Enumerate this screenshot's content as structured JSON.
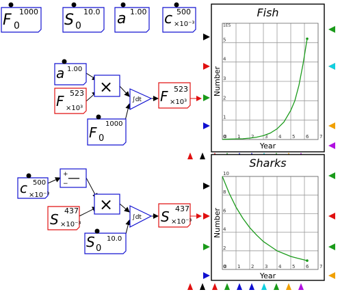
{
  "blocks": {
    "f0_top": {
      "symbol": "F",
      "sub": "0",
      "sup": "1000"
    },
    "s0_top": {
      "symbol": "S",
      "sub": "0",
      "sup": "10.0"
    },
    "a_top": {
      "symbol": "a",
      "sup": "1.00"
    },
    "c_top": {
      "symbol": "c",
      "sup": "500",
      "unit": "×10⁻³"
    },
    "a_in": {
      "symbol": "a",
      "sup": "1.00"
    },
    "f_in": {
      "symbol": "F",
      "sup": "523",
      "unit": "×10³"
    },
    "f0_in": {
      "symbol": "F",
      "sub": "0",
      "sup": "1000"
    },
    "f_out": {
      "symbol": "F",
      "sup": "523",
      "unit": "×10³"
    },
    "c_in": {
      "symbol": "c",
      "sup": "500",
      "unit": "×10⁻³"
    },
    "s_in": {
      "symbol": "S",
      "sup": "437",
      "unit": "×10⁻³"
    },
    "s0_in": {
      "symbol": "S",
      "sub": "0",
      "sup": "10.0"
    },
    "s_out": {
      "symbol": "S",
      "sup": "437",
      "unit": "×10⁻³"
    }
  },
  "operators": {
    "multiply": "×",
    "integrate": "∫dt",
    "minus": "—",
    "plus_sign": "+",
    "minus_sign": "−"
  },
  "colors": {
    "blue": "#1010d0",
    "red": "#e01010",
    "green": "#1a9a1a",
    "cyan": "#10d0e0",
    "orange": "#f0a000",
    "purple": "#b010e0",
    "black": "#000000"
  },
  "chart_data": [
    {
      "type": "line",
      "title": "Fish",
      "xlabel": "Year",
      "ylabel": "Number",
      "ymult": "1E5",
      "xlim": [
        0,
        7
      ],
      "ylim": [
        0,
        6
      ],
      "xticks": [
        "0",
        "1",
        "2",
        "3",
        "4",
        "5",
        "6",
        "7"
      ],
      "yticks": [
        "0",
        "1",
        "2",
        "3",
        "4",
        "5"
      ],
      "grid": true,
      "series": [
        {
          "color": "green",
          "x": [
            0,
            0.5,
            1,
            1.5,
            2,
            2.5,
            3,
            3.5,
            4,
            4.5,
            5,
            5.3,
            5.6,
            5.9,
            6.2
          ],
          "y": [
            0.01,
            0.02,
            0.03,
            0.04,
            0.07,
            0.12,
            0.2,
            0.33,
            0.55,
            0.9,
            1.5,
            2.0,
            2.8,
            3.9,
            5.2
          ]
        }
      ]
    },
    {
      "type": "line",
      "title": "Sharks",
      "xlabel": "Year",
      "ylabel": "Number",
      "xlim": [
        0,
        7
      ],
      "ylim": [
        0,
        10
      ],
      "xticks": [
        "0",
        "1",
        "2",
        "3",
        "4",
        "5",
        "6",
        "7"
      ],
      "yticks": [
        "0",
        "2",
        "4",
        "6",
        "8",
        "10"
      ],
      "grid": true,
      "series": [
        {
          "color": "green",
          "x": [
            0,
            0.5,
            1,
            1.5,
            2,
            2.5,
            3,
            3.5,
            4,
            4.5,
            5,
            5.5,
            6.2
          ],
          "y": [
            10,
            8.2,
            6.7,
            5.5,
            4.5,
            3.7,
            3.0,
            2.5,
            2.0,
            1.7,
            1.4,
            1.2,
            0.95
          ]
        }
      ]
    }
  ]
}
